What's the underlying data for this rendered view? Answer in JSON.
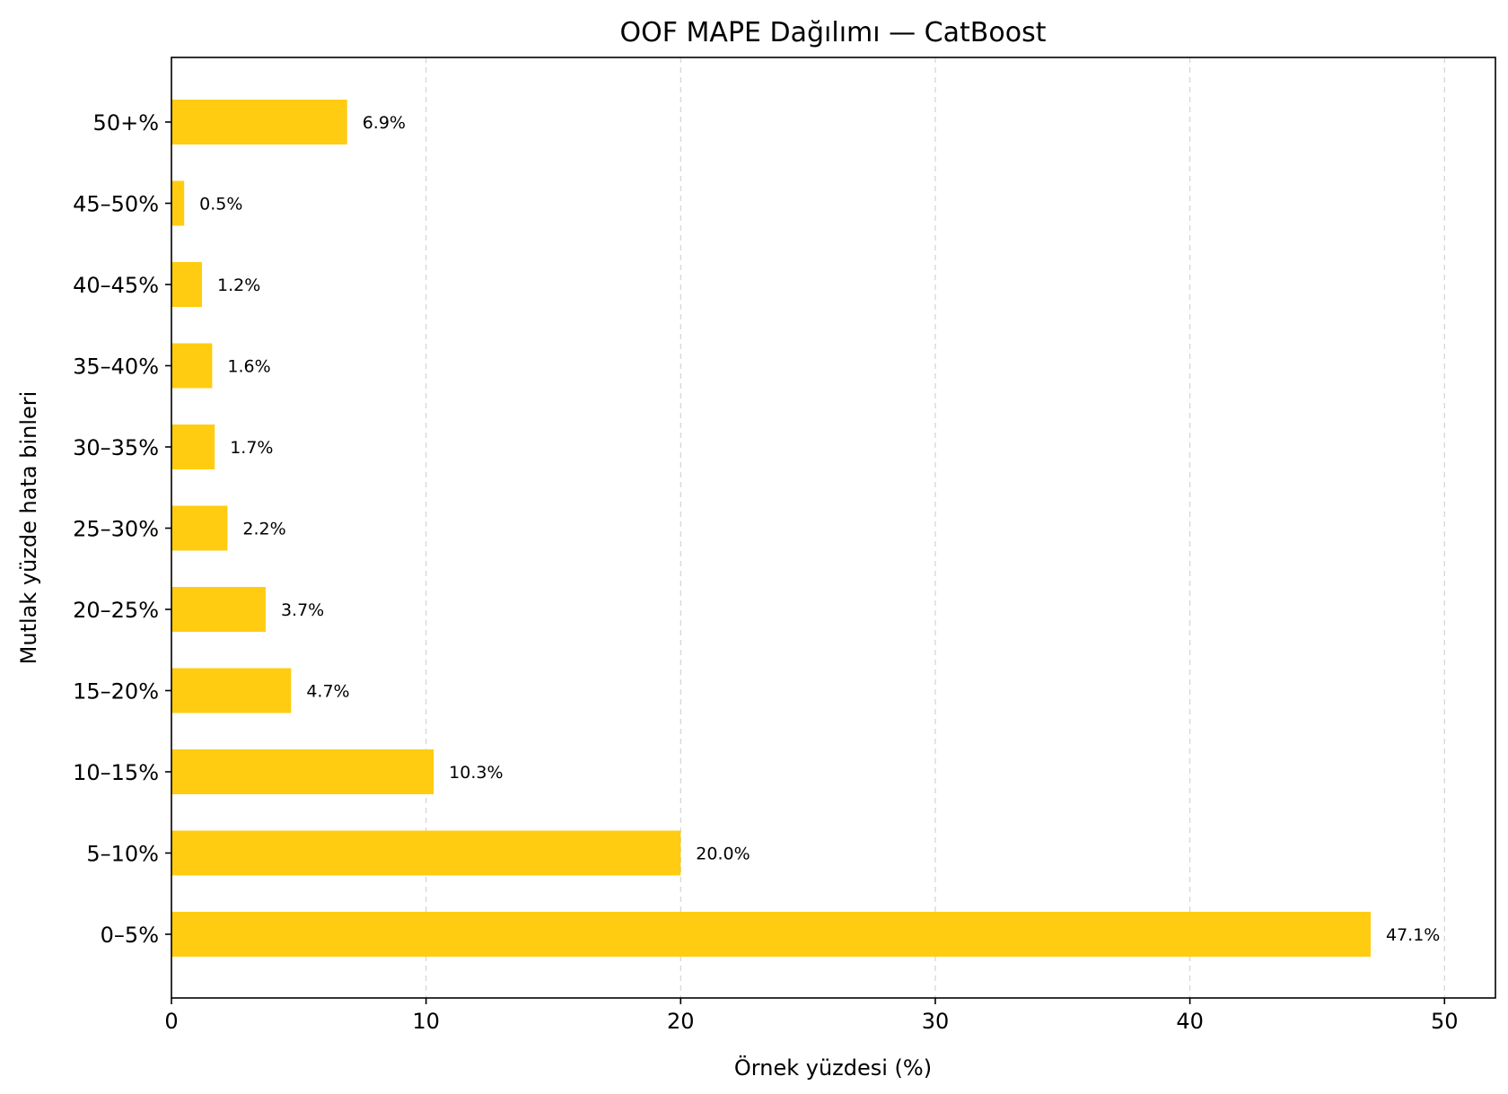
{
  "chart_data": {
    "type": "bar",
    "orientation": "horizontal",
    "title": "OOF MAPE Dağılımı — CatBoost",
    "xlabel": "Örnek yüzdesi (%)",
    "ylabel": "Mutlak yüzde hata binleri",
    "categories": [
      "0–5%",
      "5–10%",
      "10–15%",
      "15–20%",
      "20–25%",
      "25–30%",
      "30–35%",
      "35–40%",
      "40–45%",
      "45–50%",
      "50+%"
    ],
    "values": [
      47.1,
      20.0,
      10.3,
      4.7,
      3.7,
      2.2,
      1.7,
      1.6,
      1.2,
      0.5,
      6.9
    ],
    "data_labels": [
      "47.1%",
      "20.0%",
      "10.3%",
      "4.7%",
      "3.7%",
      "2.2%",
      "1.7%",
      "1.6%",
      "1.2%",
      "0.5%",
      "6.9%"
    ],
    "xlim": [
      0,
      52
    ],
    "xticks": [
      0,
      10,
      20,
      30,
      40,
      50
    ],
    "xtick_labels": [
      "0",
      "10",
      "20",
      "30",
      "40",
      "50"
    ],
    "grid": "x, dashed",
    "bar_color": "#FFCC11"
  }
}
